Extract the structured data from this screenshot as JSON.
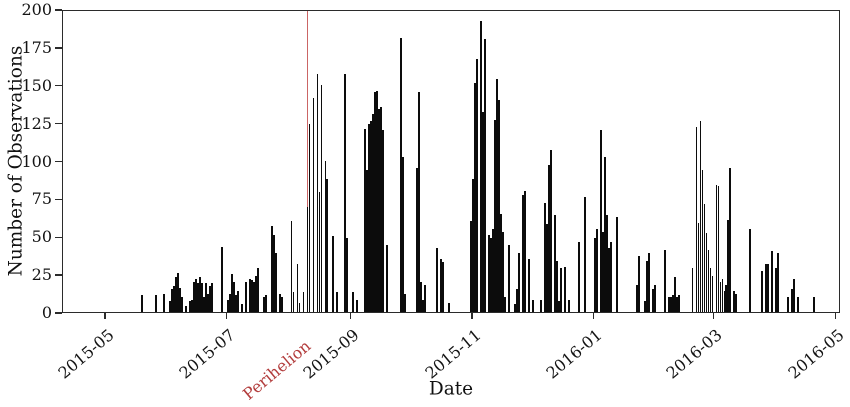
{
  "figure": {
    "ylabel": "Number of Observations",
    "xlabel": "Date",
    "colors": {
      "background": "#ffffff",
      "bar": "#0c0c0c",
      "spine": "#2b2b2b",
      "tick_label": "#141414",
      "annotation_text": "#b23b3b",
      "annotation_line": "#cb6565"
    }
  },
  "chart_data": {
    "type": "bar",
    "title": "",
    "xlabel": "Date",
    "ylabel": "Number of Observations",
    "ylim": [
      0,
      200
    ],
    "yticks": [
      0,
      25,
      50,
      75,
      100,
      125,
      150,
      175,
      200
    ],
    "xticks": [
      {
        "label": "2015-05",
        "date": "2015-05-01"
      },
      {
        "label": "2015-07",
        "date": "2015-07-01"
      },
      {
        "label": "2015-09",
        "date": "2015-09-01"
      },
      {
        "label": "2015-11",
        "date": "2015-11-01"
      },
      {
        "label": "2016-01",
        "date": "2016-01-01"
      },
      {
        "label": "2016-03",
        "date": "2016-03-01"
      },
      {
        "label": "2016-05",
        "date": "2016-05-01"
      }
    ],
    "x_range": [
      "2015-04-10",
      "2016-05-08"
    ],
    "grid": false,
    "legend": null,
    "annotation": {
      "label": "Perihelion",
      "date": "2015-08-10"
    },
    "series": [
      [
        "2015-05-19",
        11
      ],
      [
        "2015-05-26",
        11
      ],
      [
        "2015-05-30",
        12
      ],
      [
        "2015-06-02",
        7
      ],
      [
        "2015-06-03",
        15
      ],
      [
        "2015-06-04",
        17
      ],
      [
        "2015-06-05",
        23
      ],
      [
        "2015-06-06",
        26
      ],
      [
        "2015-06-07",
        16
      ],
      [
        "2015-06-08",
        10
      ],
      [
        "2015-06-10",
        4
      ],
      [
        "2015-06-12",
        7
      ],
      [
        "2015-06-13",
        8
      ],
      [
        "2015-06-14",
        20
      ],
      [
        "2015-06-15",
        22
      ],
      [
        "2015-06-16",
        19
      ],
      [
        "2015-06-17",
        23
      ],
      [
        "2015-06-18",
        19
      ],
      [
        "2015-06-19",
        10
      ],
      [
        "2015-06-20",
        19
      ],
      [
        "2015-06-21",
        12
      ],
      [
        "2015-06-22",
        17
      ],
      [
        "2015-06-23",
        19
      ],
      [
        "2015-06-28",
        43
      ],
      [
        "2015-07-01",
        8
      ],
      [
        "2015-07-02",
        12
      ],
      [
        "2015-07-03",
        25
      ],
      [
        "2015-07-04",
        20
      ],
      [
        "2015-07-05",
        11
      ],
      [
        "2015-07-06",
        14
      ],
      [
        "2015-07-08",
        5
      ],
      [
        "2015-07-10",
        20
      ],
      [
        "2015-07-12",
        22
      ],
      [
        "2015-07-13",
        21
      ],
      [
        "2015-07-14",
        20
      ],
      [
        "2015-07-15",
        24
      ],
      [
        "2015-07-16",
        29
      ],
      [
        "2015-07-19",
        10
      ],
      [
        "2015-07-20",
        11
      ],
      [
        "2015-07-23",
        57
      ],
      [
        "2015-07-24",
        51
      ],
      [
        "2015-07-25",
        39
      ],
      [
        "2015-07-27",
        12
      ],
      [
        "2015-07-28",
        10
      ],
      [
        "2015-08-02",
        60
      ],
      [
        "2015-08-03",
        13
      ],
      [
        "2015-08-05",
        32
      ],
      [
        "2015-08-06",
        6
      ],
      [
        "2015-08-08",
        13
      ],
      [
        "2015-08-10",
        69
      ],
      [
        "2015-08-11",
        124
      ],
      [
        "2015-08-13",
        141
      ],
      [
        "2015-08-15",
        157
      ],
      [
        "2015-08-16",
        79
      ],
      [
        "2015-08-17",
        150
      ],
      [
        "2015-08-19",
        100
      ],
      [
        "2015-08-20",
        88
      ],
      [
        "2015-08-23",
        50
      ],
      [
        "2015-08-25",
        13
      ],
      [
        "2015-08-29",
        157
      ],
      [
        "2015-08-30",
        49
      ],
      [
        "2015-09-02",
        13
      ],
      [
        "2015-09-04",
        8
      ],
      [
        "2015-09-08",
        121
      ],
      [
        "2015-09-09",
        94
      ],
      [
        "2015-09-10",
        124
      ],
      [
        "2015-09-11",
        126
      ],
      [
        "2015-09-12",
        131
      ],
      [
        "2015-09-13",
        145
      ],
      [
        "2015-09-14",
        146
      ],
      [
        "2015-09-15",
        134
      ],
      [
        "2015-09-16",
        135
      ],
      [
        "2015-09-17",
        120
      ],
      [
        "2015-09-19",
        44
      ],
      [
        "2015-09-26",
        181
      ],
      [
        "2015-09-27",
        102
      ],
      [
        "2015-09-28",
        12
      ],
      [
        "2015-10-04",
        95
      ],
      [
        "2015-10-05",
        145
      ],
      [
        "2015-10-06",
        20
      ],
      [
        "2015-10-07",
        8
      ],
      [
        "2015-10-08",
        18
      ],
      [
        "2015-10-14",
        42
      ],
      [
        "2015-10-16",
        35
      ],
      [
        "2015-10-17",
        33
      ],
      [
        "2015-10-20",
        6
      ],
      [
        "2015-10-31",
        60
      ],
      [
        "2015-11-01",
        88
      ],
      [
        "2015-11-02",
        151
      ],
      [
        "2015-11-03",
        167
      ],
      [
        "2015-11-05",
        192
      ],
      [
        "2015-11-06",
        132
      ],
      [
        "2015-11-07",
        180
      ],
      [
        "2015-11-09",
        51
      ],
      [
        "2015-11-10",
        49
      ],
      [
        "2015-11-11",
        55
      ],
      [
        "2015-11-12",
        127
      ],
      [
        "2015-11-13",
        154
      ],
      [
        "2015-11-14",
        140
      ],
      [
        "2015-11-15",
        65
      ],
      [
        "2015-11-16",
        53
      ],
      [
        "2015-11-17",
        10
      ],
      [
        "2015-11-19",
        44
      ],
      [
        "2015-11-22",
        5
      ],
      [
        "2015-11-23",
        15
      ],
      [
        "2015-11-24",
        39
      ],
      [
        "2015-11-26",
        77
      ],
      [
        "2015-11-27",
        80
      ],
      [
        "2015-11-29",
        35
      ],
      [
        "2015-12-01",
        8
      ],
      [
        "2015-12-05",
        8
      ],
      [
        "2015-12-07",
        72
      ],
      [
        "2015-12-08",
        58
      ],
      [
        "2015-12-09",
        97
      ],
      [
        "2015-12-10",
        107
      ],
      [
        "2015-12-12",
        64
      ],
      [
        "2015-12-13",
        34
      ],
      [
        "2015-12-14",
        7
      ],
      [
        "2015-12-15",
        29
      ],
      [
        "2015-12-17",
        30
      ],
      [
        "2015-12-19",
        8
      ],
      [
        "2015-12-24",
        46
      ],
      [
        "2015-12-27",
        76
      ],
      [
        "2016-01-01",
        49
      ],
      [
        "2016-01-02",
        55
      ],
      [
        "2016-01-04",
        120
      ],
      [
        "2016-01-05",
        53
      ],
      [
        "2016-01-06",
        102
      ],
      [
        "2016-01-07",
        64
      ],
      [
        "2016-01-08",
        42
      ],
      [
        "2016-01-09",
        46
      ],
      [
        "2016-01-12",
        63
      ],
      [
        "2016-01-22",
        18
      ],
      [
        "2016-01-23",
        37
      ],
      [
        "2016-01-26",
        7
      ],
      [
        "2016-01-27",
        34
      ],
      [
        "2016-01-28",
        39
      ],
      [
        "2016-01-30",
        15
      ],
      [
        "2016-01-31",
        18
      ],
      [
        "2016-02-05",
        41
      ],
      [
        "2016-02-07",
        10
      ],
      [
        "2016-02-08",
        10
      ],
      [
        "2016-02-09",
        11
      ],
      [
        "2016-02-10",
        23
      ],
      [
        "2016-02-11",
        10
      ],
      [
        "2016-02-12",
        11
      ],
      [
        "2016-02-19",
        29
      ],
      [
        "2016-02-21",
        122
      ],
      [
        "2016-02-22",
        59
      ],
      [
        "2016-02-23",
        126
      ],
      [
        "2016-02-24",
        94
      ],
      [
        "2016-02-25",
        71
      ],
      [
        "2016-02-26",
        52
      ],
      [
        "2016-02-27",
        41
      ],
      [
        "2016-02-28",
        29
      ],
      [
        "2016-02-29",
        24
      ],
      [
        "2016-03-02",
        84
      ],
      [
        "2016-03-03",
        83
      ],
      [
        "2016-03-04",
        20
      ],
      [
        "2016-03-05",
        22
      ],
      [
        "2016-03-06",
        14
      ],
      [
        "2016-03-07",
        18
      ],
      [
        "2016-03-08",
        61
      ],
      [
        "2016-03-09",
        95
      ],
      [
        "2016-03-11",
        14
      ],
      [
        "2016-03-12",
        12
      ],
      [
        "2016-03-19",
        55
      ],
      [
        "2016-03-25",
        27
      ],
      [
        "2016-03-27",
        32
      ],
      [
        "2016-03-28",
        32
      ],
      [
        "2016-03-30",
        40
      ],
      [
        "2016-04-01",
        29
      ],
      [
        "2016-04-02",
        39
      ],
      [
        "2016-04-07",
        10
      ],
      [
        "2016-04-09",
        15
      ],
      [
        "2016-04-10",
        22
      ],
      [
        "2016-04-12",
        10
      ],
      [
        "2016-04-20",
        10
      ]
    ]
  }
}
